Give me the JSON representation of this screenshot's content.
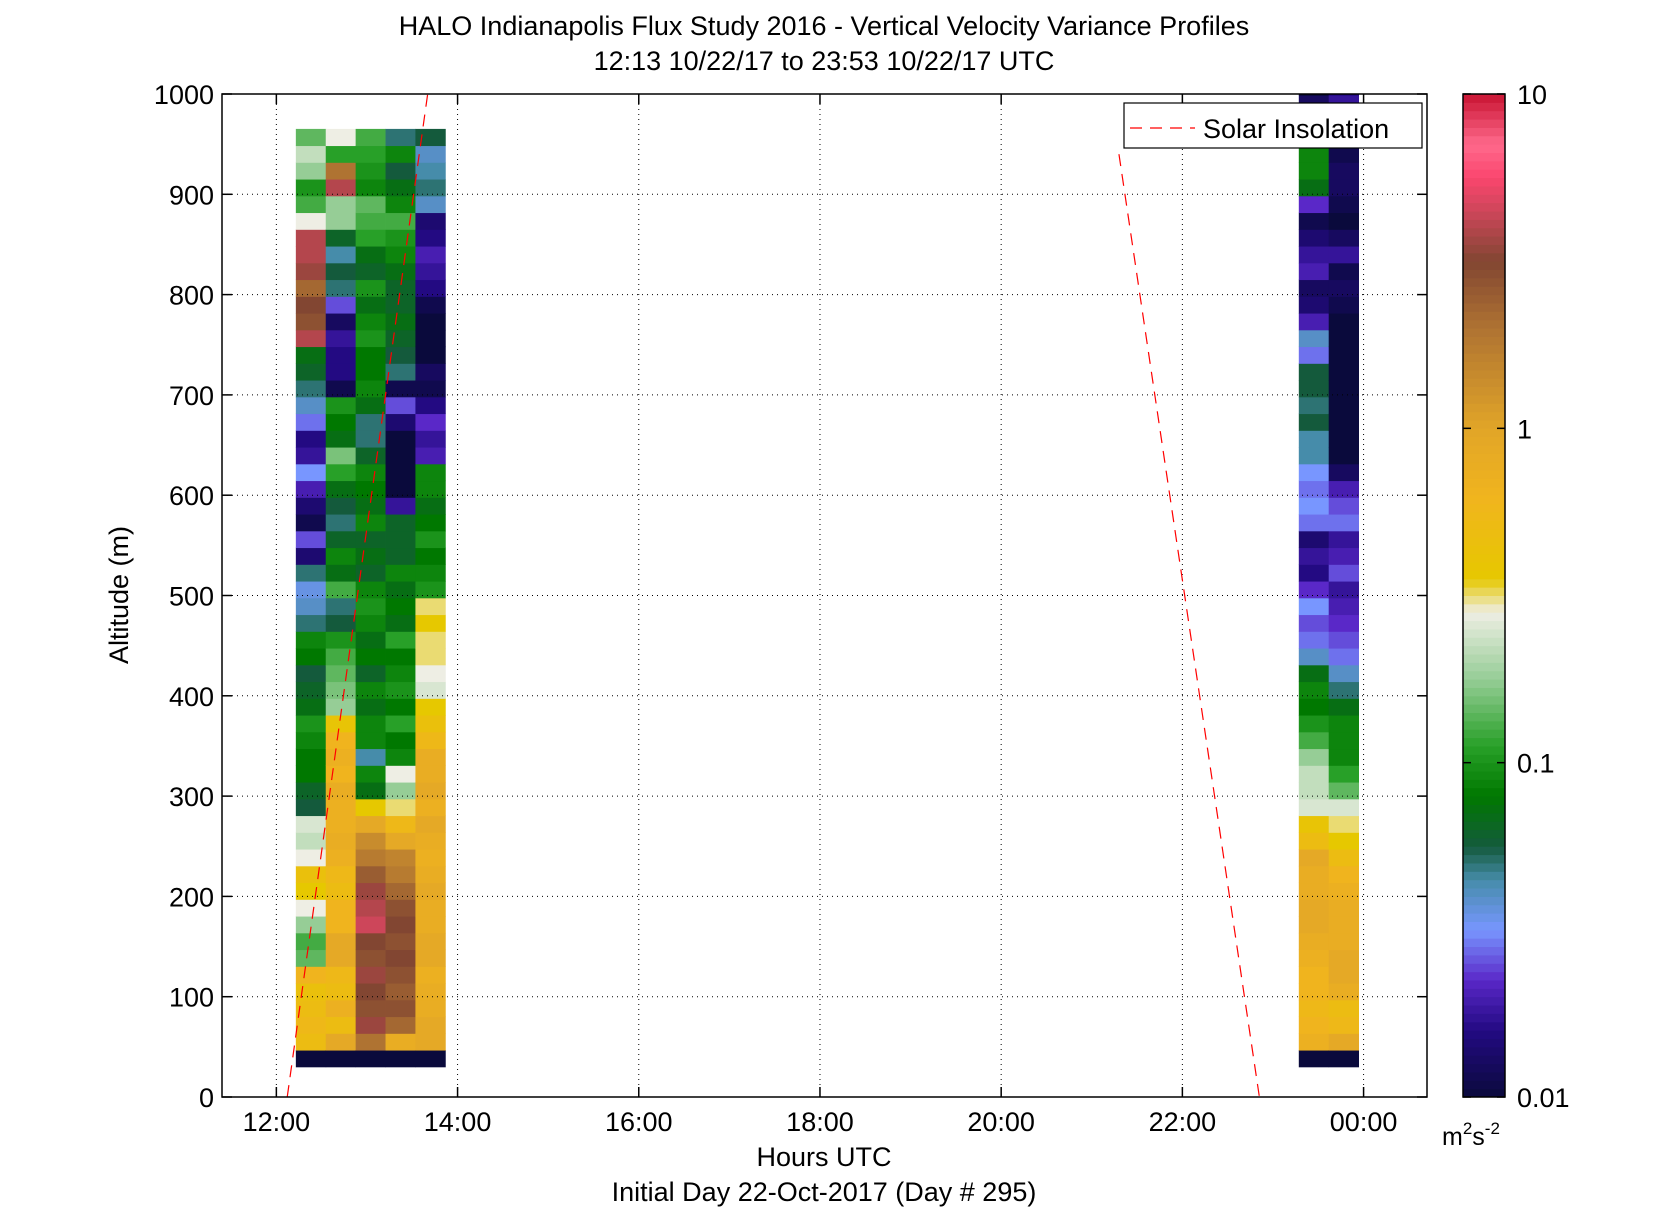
{
  "chart_data": {
    "type": "heatmap",
    "title": "HALO Indianapolis Flux Study 2016 - Vertical Velocity Variance Profiles",
    "subtitle": "12:13 10/22/17 to 23:53 10/22/17  UTC",
    "xlabel": "Hours UTC",
    "footer": "Initial Day 22-Oct-2017 (Day # 295)",
    "ylabel": "Altitude (m)",
    "xlim": [
      11.4,
      24.7
    ],
    "ylim": [
      0,
      1000
    ],
    "x_ticks": [
      12,
      14,
      16,
      18,
      20,
      22,
      24
    ],
    "x_tick_labels": [
      "12:00",
      "14:00",
      "16:00",
      "18:00",
      "20:00",
      "22:00",
      "00:00"
    ],
    "y_ticks": [
      0,
      100,
      200,
      300,
      400,
      500,
      600,
      700,
      800,
      900,
      1000
    ],
    "y_tick_labels": [
      "0",
      "100",
      "200",
      "300",
      "400",
      "500",
      "600",
      "700",
      "800",
      "900",
      "1000"
    ],
    "grid": true,
    "colorbar": {
      "scale": "log",
      "range": [
        0.01,
        10
      ],
      "tick_values": [
        0.01,
        0.1,
        1,
        10
      ],
      "tick_labels": [
        "0.01",
        "0.1",
        "1",
        "10"
      ],
      "units_base": "m",
      "units_sup1": "2",
      "units_mid": "s",
      "units_sup2": "-2"
    },
    "legend": {
      "placement": "top-right",
      "entries": [
        {
          "label": "Solar Insolation",
          "color": "#ff0000",
          "style": "dashed"
        }
      ]
    },
    "solar_insolation": [
      {
        "x": [
          12.12,
          13.67
        ],
        "y": [
          0,
          1000
        ]
      },
      {
        "x": [
          21.3,
          22.85
        ],
        "y": [
          940,
          0
        ]
      }
    ],
    "profiles": {
      "altitude_start": 30,
      "altitude_step": 16.7,
      "time_step_hours": 0.33,
      "times": [
        12.38,
        12.71,
        13.04,
        13.37,
        13.7,
        23.45,
        23.78
      ],
      "log10_variance": [
        [
          -2.0,
          -0.3,
          -0.25,
          -0.3,
          -0.35,
          -0.2,
          -0.85,
          -0.9,
          -0.75,
          -0.55,
          -0.45,
          -0.35,
          -0.55,
          -0.65,
          -0.6,
          -1.25,
          -1.2,
          -1.1,
          -1.1,
          -1.05,
          -1.0,
          -1.15,
          -1.2,
          -1.25,
          -1.1,
          -1.05,
          -1.3,
          -1.4,
          -1.45,
          -1.3,
          -1.85,
          -1.6,
          -1.95,
          -1.85,
          -1.7,
          -1.5,
          -1.75,
          -1.8,
          -1.55,
          -1.4,
          -1.3,
          -1.2,
          -1.15,
          0.6,
          0.45,
          0.5,
          0.35,
          0.55,
          0.6,
          0.6,
          -0.55,
          -0.9,
          -1.0,
          -0.75,
          -0.65,
          -0.85
        ],
        [
          -2.0,
          -0.05,
          -0.3,
          -0.15,
          -0.3,
          -0.25,
          -0.05,
          -0.05,
          -0.2,
          -0.2,
          -0.3,
          -0.25,
          -0.15,
          -0.1,
          -0.15,
          -0.15,
          -0.1,
          -0.2,
          -0.15,
          -0.2,
          -0.4,
          -0.75,
          -0.8,
          -0.85,
          -0.9,
          -1.0,
          -1.25,
          -1.3,
          -0.9,
          -1.15,
          -1.05,
          -1.2,
          -1.3,
          -1.25,
          -1.15,
          -0.95,
          -0.8,
          -1.15,
          -1.1,
          -1.0,
          -1.95,
          -1.8,
          -1.8,
          -1.75,
          -1.9,
          -1.6,
          -1.3,
          -1.25,
          -1.35,
          -1.2,
          -0.75,
          -0.75,
          0.6,
          0.3,
          -0.95,
          -0.55
        ],
        [
          -2.0,
          0.3,
          0.55,
          0.45,
          0.5,
          0.55,
          0.45,
          0.5,
          0.65,
          0.6,
          0.55,
          0.4,
          0.25,
          0.15,
          -0.05,
          -0.45,
          -1.15,
          -1.05,
          -1.35,
          -1.05,
          -1.05,
          -1.15,
          -1.05,
          -1.2,
          -1.1,
          -1.15,
          -1.05,
          -1.0,
          -1.05,
          -1.2,
          -1.15,
          -1.2,
          -1.05,
          -1.15,
          -1.1,
          -1.05,
          -1.2,
          -1.3,
          -1.3,
          -1.15,
          -1.05,
          -1.1,
          -1.1,
          -1.0,
          -1.05,
          -1.15,
          -1.0,
          -1.2,
          -1.15,
          -0.95,
          -0.9,
          -0.85,
          -1.05,
          -1.0,
          -0.95,
          -0.9
        ],
        [
          -2.0,
          -0.1,
          0.35,
          0.45,
          0.4,
          0.45,
          0.5,
          0.45,
          0.5,
          0.45,
          0.35,
          0.25,
          0.2,
          -0.05,
          -0.25,
          -0.5,
          -0.75,
          -0.55,
          -1.05,
          -1.1,
          -0.95,
          -1.1,
          -1.0,
          -1.05,
          -1.1,
          -0.95,
          -1.15,
          -1.1,
          -1.15,
          -1.05,
          -1.2,
          -1.2,
          -1.2,
          -1.75,
          -2.0,
          -2.0,
          -2.0,
          -2.0,
          -1.85,
          -1.6,
          -1.95,
          -1.3,
          -1.25,
          -1.2,
          -1.15,
          -1.2,
          -1.2,
          -1.15,
          -1.05,
          -1.0,
          -0.9,
          -1.05,
          -1.15,
          -1.25,
          -1.05,
          -1.3
        ],
        [
          -2.0,
          -0.05,
          -0.05,
          -0.1,
          -0.1,
          -0.15,
          -0.05,
          -0.05,
          -0.1,
          -0.1,
          -0.05,
          -0.1,
          -0.15,
          -0.1,
          -0.05,
          -0.15,
          -0.05,
          -0.1,
          -0.1,
          -0.25,
          -0.35,
          -0.45,
          -0.6,
          -0.55,
          -0.5,
          -0.5,
          -0.45,
          -0.5,
          -1.0,
          -1.05,
          -1.1,
          -1.0,
          -1.1,
          -1.15,
          -1.05,
          -1.05,
          -1.7,
          -1.75,
          -1.65,
          -1.8,
          -1.95,
          -1.9,
          -2.0,
          -2.0,
          -2.0,
          -1.95,
          -1.8,
          -1.75,
          -1.7,
          -1.8,
          -1.85,
          -1.4,
          -1.3,
          -1.35,
          -1.4,
          -1.25
        ],
        [
          -2.0,
          -0.15,
          -0.2,
          -0.25,
          -0.2,
          -0.2,
          -0.15,
          -0.1,
          -0.05,
          -0.05,
          -0.1,
          -0.1,
          -0.05,
          -0.3,
          -0.4,
          -0.6,
          -0.65,
          -0.65,
          -0.75,
          -0.9,
          -1.0,
          -1.1,
          -1.05,
          -1.15,
          -1.4,
          -1.55,
          -1.6,
          -1.5,
          -1.65,
          -1.8,
          -1.75,
          -1.85,
          -1.55,
          -1.5,
          -1.55,
          -1.5,
          -1.35,
          -1.35,
          -1.25,
          -1.3,
          -1.25,
          -1.25,
          -1.55,
          -1.4,
          -1.7,
          -1.85,
          -1.9,
          -1.7,
          -1.75,
          -1.85,
          -1.95,
          -1.65,
          -1.15,
          -1.05,
          -1.05,
          -1.2,
          -1.3,
          -1.9,
          -2.0,
          -2.0
        ],
        [
          -2.0,
          -0.05,
          -0.25,
          -0.3,
          -0.1,
          -0.05,
          -0.05,
          -0.1,
          -0.1,
          -0.1,
          -0.15,
          -0.2,
          -0.3,
          -0.45,
          -0.5,
          -0.6,
          -0.85,
          -0.95,
          -1.05,
          -1.05,
          -1.05,
          -1.15,
          -1.3,
          -1.4,
          -1.55,
          -1.6,
          -1.65,
          -1.7,
          -1.75,
          -1.6,
          -1.7,
          -1.75,
          -1.55,
          -1.6,
          -1.7,
          -1.9,
          -2.0,
          -2.0,
          -2.0,
          -2.0,
          -2.0,
          -2.0,
          -2.0,
          -2.0,
          -2.0,
          -1.95,
          -1.9,
          -1.95,
          -1.75,
          -1.9,
          -2.0,
          -1.95,
          -1.9,
          -1.9,
          -1.95,
          -1.85,
          -1.8,
          -1.75,
          -1.8,
          -1.75
        ]
      ]
    }
  }
}
